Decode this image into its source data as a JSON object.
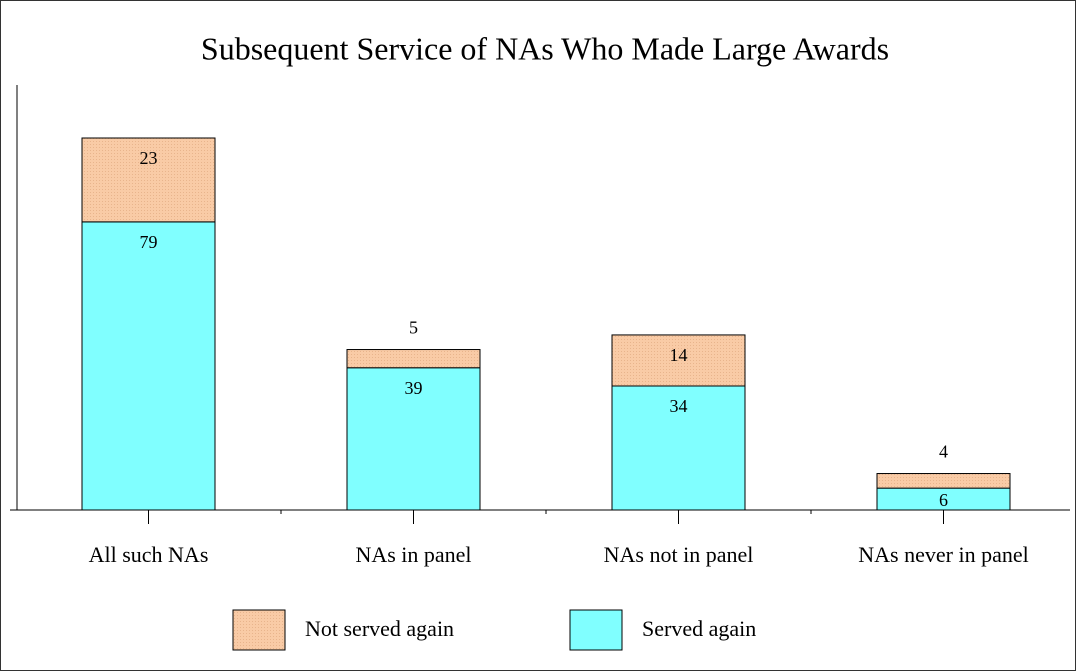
{
  "chart_data": {
    "type": "stacked_bar",
    "title": "Subsequent Service of NAs Who Made Large Awards",
    "categories": [
      "All such NAs",
      "NAs in panel",
      "NAs not in panel",
      "NAs never in panel"
    ],
    "series": [
      {
        "name": "Served again",
        "color": "#80ffff",
        "values": [
          79,
          39,
          34,
          6
        ]
      },
      {
        "name": "Not served again",
        "color": "#f9cba6",
        "values": [
          23,
          5,
          14,
          4
        ]
      }
    ],
    "legend": "bottom"
  }
}
